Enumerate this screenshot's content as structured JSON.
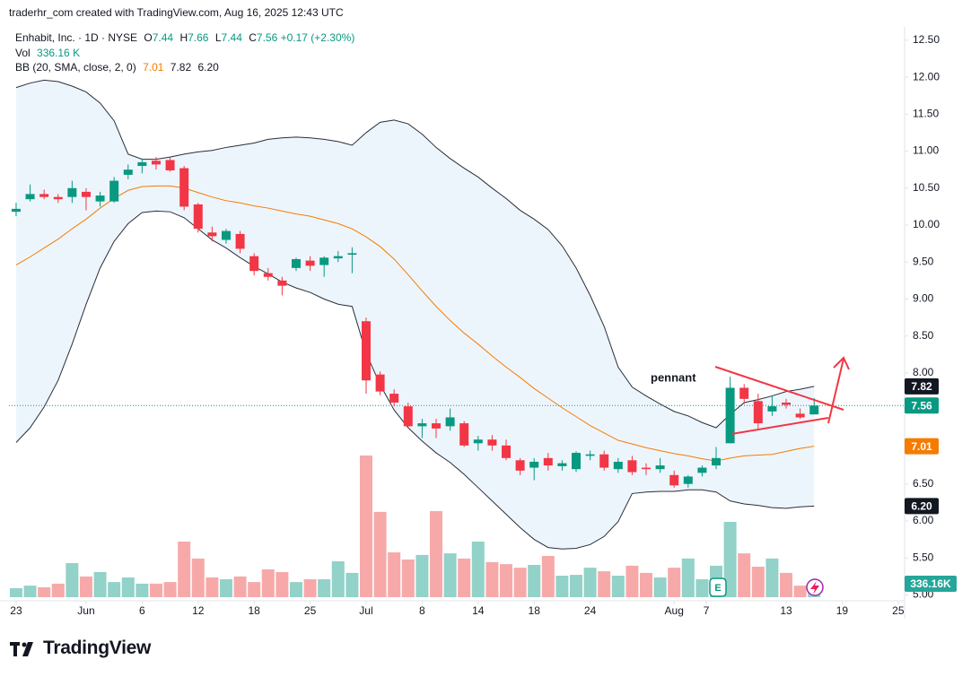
{
  "header": {
    "attribution": "traderhr_com created with TradingView.com, Aug 16, 2025 12:43 UTC"
  },
  "legend": {
    "symbol": "Enhabit, Inc. · 1D · NYSE",
    "ohlc_letters": [
      "O",
      "H",
      "L",
      "C"
    ],
    "change": "+0.17 (+2.30%)",
    "volume_name": "Vol",
    "volume_text": "336.16 K",
    "bb_name": "BB (20, SMA, close, 2, 0)",
    "bb_values": [
      "7.01",
      "7.82",
      "6.20"
    ]
  },
  "chart_data": {
    "type": "candlestick",
    "open": [
      10.18,
      10.35,
      10.42,
      10.38,
      10.38,
      10.45,
      10.32,
      10.32,
      10.68,
      10.8,
      10.87,
      10.88,
      10.77,
      10.28,
      9.9,
      9.8,
      9.88,
      9.58,
      9.35,
      9.25,
      9.42,
      9.52,
      9.46,
      9.55,
      9.6,
      8.7,
      7.98,
      7.72,
      7.55,
      7.28,
      7.32,
      7.28,
      7.32,
      7.05,
      7.1,
      7.02,
      6.82,
      6.72,
      6.85,
      6.74,
      6.7,
      6.88,
      6.9,
      6.7,
      6.82,
      6.72,
      6.7,
      6.62,
      6.5,
      6.65,
      6.75,
      7.05,
      7.8,
      7.62,
      7.48,
      7.6,
      7.45,
      7.44
    ],
    "high": [
      10.3,
      10.55,
      10.48,
      10.42,
      10.6,
      10.5,
      10.45,
      10.65,
      10.82,
      10.9,
      10.92,
      10.92,
      10.8,
      10.3,
      9.98,
      9.95,
      9.92,
      9.62,
      9.42,
      9.3,
      9.56,
      9.58,
      9.58,
      9.65,
      9.7,
      8.75,
      8.02,
      7.78,
      7.6,
      7.38,
      7.38,
      7.52,
      7.35,
      7.15,
      7.16,
      7.1,
      6.85,
      6.85,
      6.92,
      6.82,
      6.94,
      6.95,
      6.95,
      6.85,
      6.88,
      6.78,
      6.85,
      6.68,
      6.62,
      6.75,
      7.0,
      7.95,
      7.85,
      7.72,
      7.7,
      7.65,
      7.52,
      7.66
    ],
    "low": [
      10.12,
      10.32,
      10.35,
      10.3,
      10.3,
      10.2,
      10.25,
      10.3,
      10.62,
      10.7,
      10.75,
      10.72,
      10.2,
      9.9,
      9.78,
      9.75,
      9.62,
      9.32,
      9.25,
      9.05,
      9.38,
      9.38,
      9.3,
      9.5,
      9.35,
      7.72,
      7.7,
      7.55,
      7.25,
      7.12,
      7.12,
      7.22,
      7.0,
      6.95,
      6.95,
      6.82,
      6.62,
      6.55,
      6.68,
      6.68,
      6.66,
      6.82,
      6.68,
      6.65,
      6.62,
      6.62,
      6.65,
      6.45,
      6.45,
      6.6,
      6.7,
      7.05,
      7.58,
      7.25,
      7.42,
      7.52,
      7.38,
      7.44
    ],
    "close": [
      10.22,
      10.42,
      10.38,
      10.35,
      10.5,
      10.38,
      10.4,
      10.6,
      10.75,
      10.85,
      10.82,
      10.74,
      10.25,
      9.95,
      9.85,
      9.92,
      9.68,
      9.38,
      9.3,
      9.18,
      9.54,
      9.45,
      9.56,
      9.58,
      9.62,
      7.9,
      7.75,
      7.6,
      7.28,
      7.32,
      7.25,
      7.4,
      7.02,
      7.1,
      7.02,
      6.85,
      6.68,
      6.8,
      6.75,
      6.78,
      6.92,
      6.9,
      6.72,
      6.8,
      6.66,
      6.7,
      6.75,
      6.48,
      6.6,
      6.72,
      6.85,
      7.8,
      7.65,
      7.32,
      7.55,
      7.57,
      7.4,
      7.56
    ],
    "volume": [
      225,
      290,
      250,
      340,
      855,
      520,
      630,
      380,
      495,
      340,
      340,
      380,
      1395,
      970,
      495,
      450,
      520,
      380,
      700,
      630,
      380,
      450,
      450,
      900,
      610,
      3555,
      2140,
      1125,
      945,
      1060,
      2160,
      1100,
      970,
      1395,
      880,
      830,
      740,
      810,
      1035,
      540,
      560,
      740,
      650,
      540,
      790,
      610,
      495,
      740,
      970,
      450,
      790,
      1890,
      1100,
      765,
      970,
      610,
      290,
      336.16
    ],
    "bb_upper": [
      11.86,
      11.92,
      11.96,
      11.94,
      11.88,
      11.8,
      11.65,
      11.41,
      10.96,
      10.89,
      10.89,
      10.92,
      10.96,
      10.99,
      11.01,
      11.05,
      11.08,
      11.11,
      11.16,
      11.18,
      11.19,
      11.18,
      11.16,
      11.13,
      11.08,
      11.25,
      11.39,
      11.42,
      11.37,
      11.23,
      11.05,
      10.9,
      10.77,
      10.65,
      10.5,
      10.36,
      10.2,
      10.08,
      9.94,
      9.72,
      9.42,
      9.05,
      8.63,
      8.08,
      7.81,
      7.69,
      7.58,
      7.48,
      7.42,
      7.33,
      7.26,
      7.44,
      7.6,
      7.64,
      7.69,
      7.75,
      7.78,
      7.82
    ],
    "bb_basis": [
      9.46,
      9.57,
      9.69,
      9.81,
      9.95,
      10.08,
      10.23,
      10.36,
      10.47,
      10.52,
      10.53,
      10.53,
      10.5,
      10.44,
      10.38,
      10.33,
      10.3,
      10.26,
      10.23,
      10.19,
      10.15,
      10.12,
      10.07,
      10.02,
      9.95,
      9.84,
      9.71,
      9.54,
      9.33,
      9.11,
      8.9,
      8.71,
      8.54,
      8.39,
      8.23,
      8.08,
      7.94,
      7.79,
      7.66,
      7.53,
      7.41,
      7.29,
      7.19,
      7.09,
      7.04,
      6.99,
      6.95,
      6.91,
      6.88,
      6.84,
      6.81,
      6.85,
      6.88,
      6.89,
      6.9,
      6.94,
      6.98,
      7.01
    ],
    "bb_lower": [
      7.06,
      7.26,
      7.54,
      7.9,
      8.39,
      8.93,
      9.42,
      9.78,
      10.02,
      10.17,
      10.19,
      10.18,
      10.1,
      9.95,
      9.8,
      9.69,
      9.56,
      9.44,
      9.34,
      9.23,
      9.15,
      9.09,
      9.0,
      8.93,
      8.9,
      8.27,
      7.84,
      7.5,
      7.26,
      7.08,
      6.92,
      6.79,
      6.63,
      6.45,
      6.27,
      6.09,
      5.91,
      5.75,
      5.64,
      5.62,
      5.63,
      5.68,
      5.79,
      5.99,
      6.37,
      6.39,
      6.4,
      6.4,
      6.42,
      6.42,
      6.39,
      6.27,
      6.23,
      6.21,
      6.18,
      6.17,
      6.19,
      6.2
    ],
    "up_color": "#089981",
    "down_color": "#f23645",
    "up_volume_color": "#92d2c8",
    "down_volume_color": "#f7a9a9",
    "bb_basis_color": "#f57c00",
    "bb_band_color": "#2a2e39",
    "bb_fill": "#edf5fc",
    "ylim": [
      4.92,
      12.68
    ],
    "yticks": [
      {
        "value": 5,
        "label": "5.00"
      },
      {
        "value": 5.5,
        "label": "5.50"
      },
      {
        "value": 6,
        "label": "6.00"
      },
      {
        "value": 6.5,
        "label": "6.50"
      },
      {
        "value": 7,
        "label": "7.00"
      },
      {
        "value": 7.5,
        "label": "7.50"
      },
      {
        "value": 8,
        "label": "8.00"
      },
      {
        "value": 8.5,
        "label": "8.50"
      },
      {
        "value": 9,
        "label": "9.00"
      },
      {
        "value": 9.5,
        "label": "9.50"
      },
      {
        "value": 10,
        "label": "10.00"
      },
      {
        "value": 10.5,
        "label": "10.50"
      },
      {
        "value": 11,
        "label": "11.00"
      },
      {
        "value": 11.5,
        "label": "11.50"
      },
      {
        "value": 12,
        "label": "12.00"
      },
      {
        "value": 12.5,
        "label": "12.50"
      }
    ],
    "xlim": [
      -0.51,
      63.46
    ],
    "xticks": [
      {
        "value": 0,
        "label": "23"
      },
      {
        "value": 5,
        "label": "Jun"
      },
      {
        "value": 9,
        "label": "6"
      },
      {
        "value": 13,
        "label": "12"
      },
      {
        "value": 17,
        "label": "18"
      },
      {
        "value": 21,
        "label": "25"
      },
      {
        "value": 25,
        "label": "Jul"
      },
      {
        "value": 29,
        "label": "8"
      },
      {
        "value": 33,
        "label": "14"
      },
      {
        "value": 37,
        "label": "18"
      },
      {
        "value": 41,
        "label": "24"
      },
      {
        "value": 47,
        "label": "Aug"
      },
      {
        "value": 49.3,
        "label": "7"
      },
      {
        "value": 55,
        "label": "13"
      },
      {
        "value": 59,
        "label": "19"
      },
      {
        "value": 63,
        "label": "25"
      }
    ],
    "vlim": [
      0,
      3600
    ],
    "volume_badge": {
      "value": 336.16,
      "label": "336.16K",
      "color": "#26a69a"
    },
    "price_badges": [
      {
        "value": 7.82,
        "label": "7.82",
        "color": "#131722"
      },
      {
        "value": 7.56,
        "label": "7.56",
        "color": "#089981"
      },
      {
        "value": 7.01,
        "label": "7.01",
        "color": "#f57c00"
      },
      {
        "value": 6.2,
        "label": "6.20",
        "color": "#131722"
      }
    ],
    "annotation": "pennant",
    "earnings_marker": "E",
    "grid": false
  },
  "footer": {
    "brand": "TradingView"
  }
}
